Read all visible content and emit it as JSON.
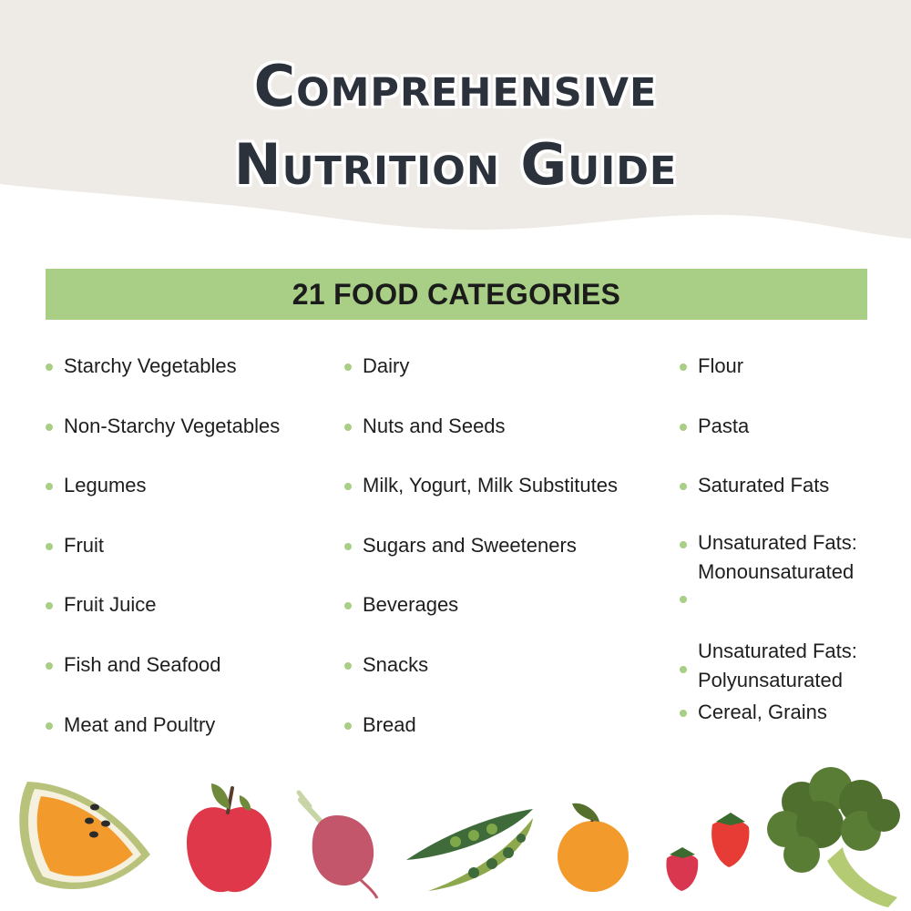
{
  "header": {
    "title_line1": "Comprehensive",
    "title_line2": "Nutrition Guide"
  },
  "banner": {
    "label": "21 FOOD CATEGORIES"
  },
  "columns": [
    [
      "Starchy Vegetables",
      "Non-Starchy Vegetables",
      "Legumes",
      "Fruit",
      "Fruit Juice",
      "Fish and Seafood",
      "Meat and Poultry"
    ],
    [
      "Dairy",
      "Nuts and Seeds",
      "Milk, Yogurt, Milk Substitutes",
      "Sugars and Sweeteners",
      "Beverages",
      "Snacks",
      "Bread"
    ],
    [
      "Flour",
      "Pasta",
      "Saturated Fats",
      "Unsaturated Fats: Monounsaturated",
      "",
      "Unsaturated Fats: Polyunsaturated",
      "Cereal, Grains"
    ]
  ],
  "colors": {
    "title": "#2b323b",
    "header_bg": "#eeebe6",
    "banner": "#a9cf86",
    "bullet": "#a9cf86"
  },
  "illustrations": [
    "orange-slice-icon",
    "apple-icon",
    "beet-icon",
    "pea-pods-icon",
    "orange-icon",
    "strawberries-icon",
    "broccoli-icon"
  ]
}
